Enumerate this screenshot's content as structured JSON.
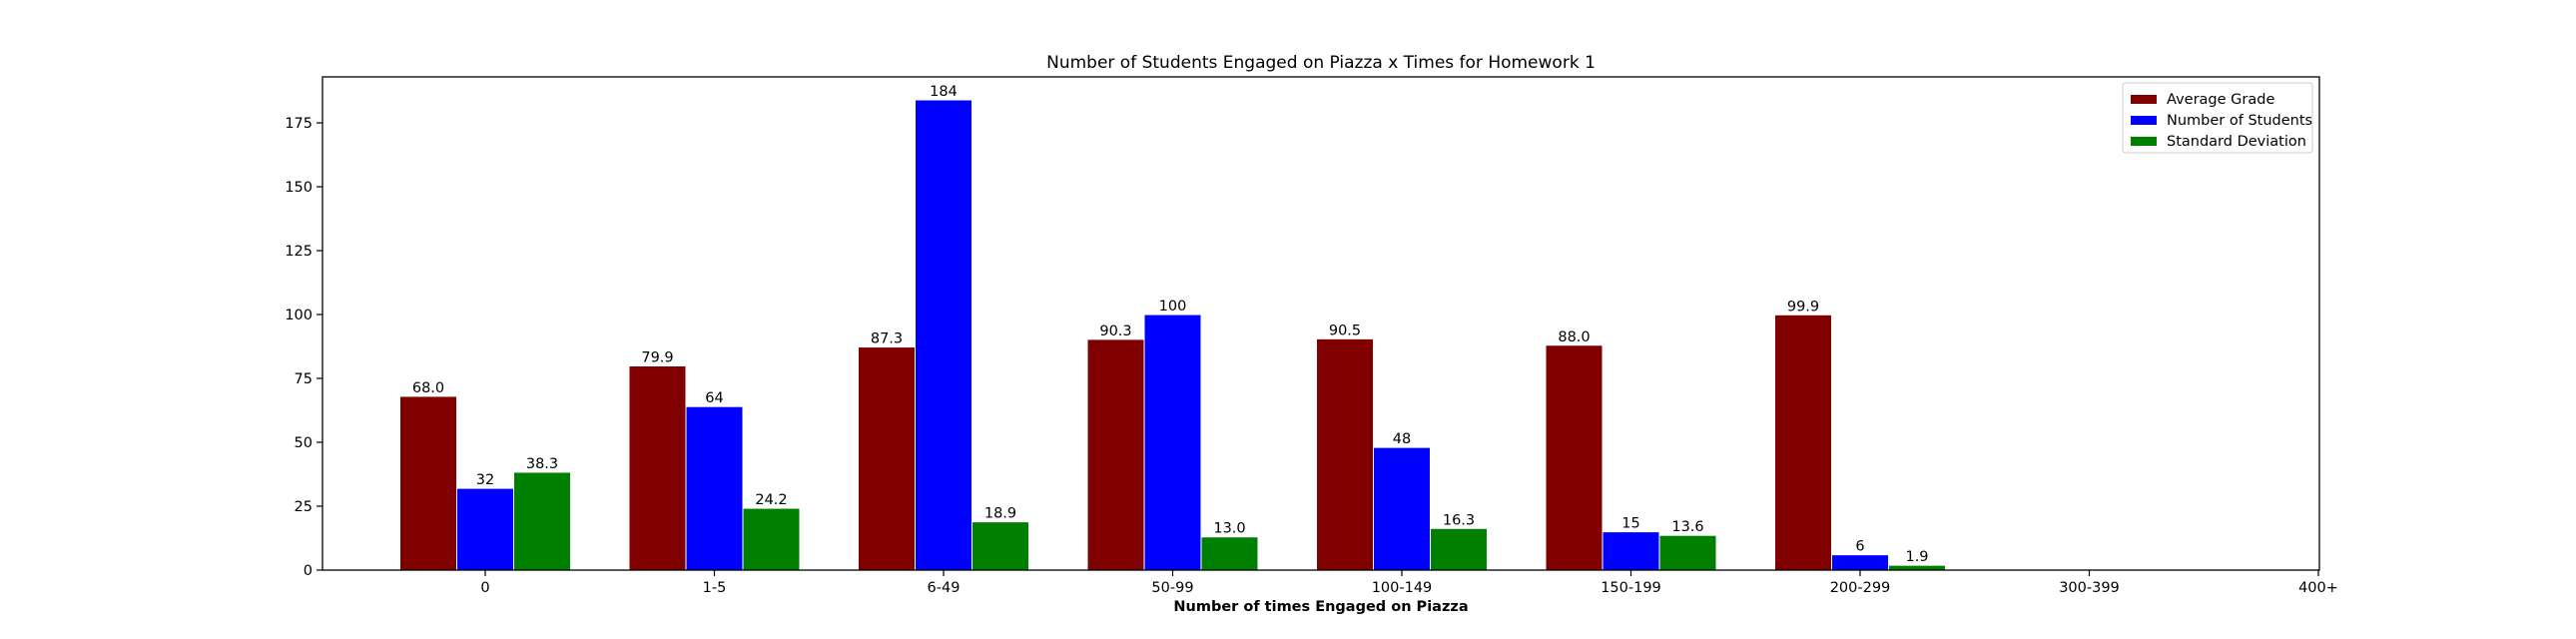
{
  "chart_data": {
    "type": "bar",
    "title": "Number of Students Engaged on Piazza x Times for Homework 1",
    "xlabel": "Number of times Engaged on Piazza",
    "ylabel": "",
    "ylim": [
      0,
      193
    ],
    "yticks": [
      0,
      25,
      50,
      75,
      100,
      125,
      150,
      175
    ],
    "categories": [
      "0",
      "1-5",
      "6-49",
      "50-99",
      "100-149",
      "150-199",
      "200-299",
      "300-399",
      "400+"
    ],
    "legend_position": "top-right",
    "grid": false,
    "series": [
      {
        "name": "Average Grade",
        "color": "#800000",
        "values": [
          68.0,
          79.9,
          87.3,
          90.3,
          90.5,
          88.0,
          99.9,
          null,
          null
        ],
        "labels": [
          "68.0",
          "79.9",
          "87.3",
          "90.3",
          "90.5",
          "88.0",
          "99.9",
          "",
          ""
        ]
      },
      {
        "name": "Number of Students",
        "color": "#0000ff",
        "values": [
          32,
          64,
          184,
          100,
          48,
          15,
          6,
          null,
          null
        ],
        "labels": [
          "32",
          "64",
          "184",
          "100",
          "48",
          "15",
          "6",
          "",
          ""
        ]
      },
      {
        "name": "Standard Deviation",
        "color": "#008000",
        "values": [
          38.3,
          24.2,
          18.9,
          13.0,
          16.3,
          13.6,
          1.9,
          null,
          null
        ],
        "labels": [
          "38.3",
          "24.2",
          "18.9",
          "13.0",
          "16.3",
          "13.6",
          "1.9",
          "",
          ""
        ]
      }
    ]
  }
}
